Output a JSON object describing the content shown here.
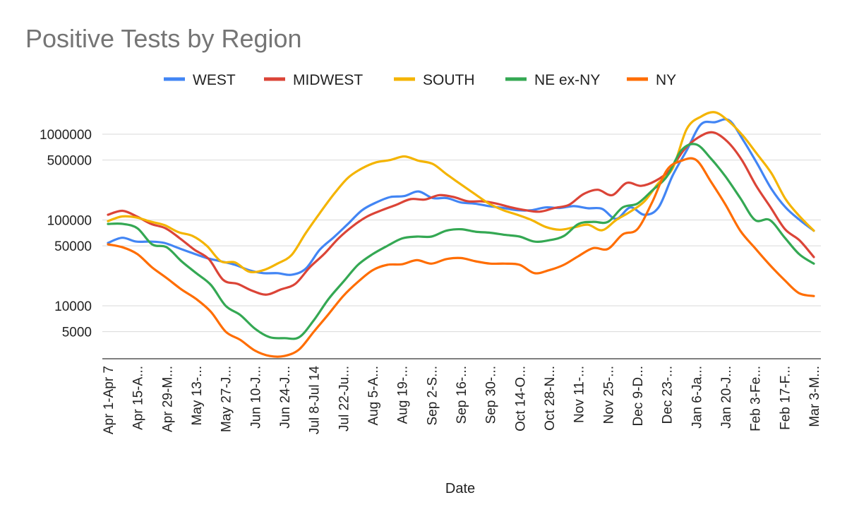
{
  "chart_data": {
    "type": "line",
    "title": "Positive Tests by Region",
    "xlabel": "Date",
    "ylabel": "",
    "yscale": "log",
    "ylim": [
      2500,
      2000000
    ],
    "yticks": [
      5000,
      10000,
      50000,
      100000,
      500000,
      1000000
    ],
    "yticklabels": [
      "5000",
      "10000",
      "50000",
      "100000",
      "500000",
      "1000000"
    ],
    "grid": true,
    "legend_position": "top",
    "xticklabels": [
      "Apr 1-Apr 7",
      "Apr 15-A...",
      "Apr 29-M...",
      "May 13-...",
      "May 27-J...",
      "Jun 10-J...",
      "Jun 24-J...",
      "Jul 8-Jul 14",
      "Jul 22-Ju...",
      "Aug 5-A...",
      "Aug 19-...",
      "Sep 2-S...",
      "Sep 16-...",
      "Sep 30-...",
      "Oct 14-O...",
      "Oct 28-N...",
      "Nov 11-...",
      "Nov 25-...",
      "Dec 9-D...",
      "Dec 23-...",
      "Jan 6-Ja...",
      "Jan 20-J...",
      "Feb 3-Fe...",
      "Feb 17-F...",
      "Mar 3-M..."
    ],
    "series": [
      {
        "name": "WEST",
        "color": "#4285f4",
        "values": [
          54000,
          62000,
          56000,
          56000,
          54000,
          47000,
          41000,
          36000,
          33000,
          30000,
          26000,
          24000,
          24000,
          23000,
          27000,
          45000,
          63000,
          90000,
          130000,
          160000,
          185000,
          190000,
          215000,
          180000,
          180000,
          160000,
          155000,
          145000,
          138000,
          130000,
          130000,
          140000,
          138000,
          145000,
          137000,
          135000,
          103000,
          140000,
          115000,
          140000,
          330000,
          650000,
          1300000,
          1380000,
          1450000,
          850000,
          450000,
          230000,
          140000,
          100000,
          75000
        ]
      },
      {
        "name": "MIDWEST",
        "color": "#db4437",
        "values": [
          115000,
          128000,
          110000,
          90000,
          80000,
          61000,
          45000,
          35000,
          20000,
          18000,
          15000,
          13500,
          15500,
          18000,
          28000,
          40000,
          61000,
          85000,
          110000,
          130000,
          150000,
          175000,
          173000,
          195000,
          185000,
          165000,
          165000,
          155000,
          140000,
          130000,
          125000,
          138000,
          150000,
          200000,
          225000,
          195000,
          270000,
          250000,
          285000,
          380000,
          660000,
          920000,
          1050000,
          820000,
          500000,
          250000,
          140000,
          78000,
          58000,
          37000
        ]
      },
      {
        "name": "SOUTH",
        "color": "#f4b400",
        "values": [
          97000,
          110000,
          107000,
          96000,
          87000,
          72000,
          65000,
          50000,
          33000,
          32000,
          25000,
          26000,
          31000,
          39000,
          70000,
          120000,
          200000,
          310000,
          400000,
          470000,
          500000,
          550000,
          490000,
          450000,
          340000,
          260000,
          200000,
          155000,
          130000,
          115000,
          100000,
          83000,
          77000,
          82000,
          88000,
          76000,
          100000,
          125000,
          165000,
          270000,
          400000,
          1150000,
          1600000,
          1800000,
          1400000,
          950000,
          580000,
          350000,
          175000,
          110000,
          75000
        ]
      },
      {
        "name": "NE ex-NY",
        "color": "#34a853",
        "values": [
          90000,
          90000,
          80000,
          52000,
          48000,
          33000,
          24000,
          17500,
          10000,
          7800,
          5400,
          4300,
          4200,
          4300,
          6800,
          12000,
          19000,
          30000,
          40000,
          50000,
          61000,
          64000,
          64000,
          75000,
          78000,
          73000,
          71000,
          67000,
          64000,
          56000,
          58000,
          65000,
          90000,
          95000,
          95000,
          140000,
          155000,
          220000,
          320000,
          650000,
          760000,
          520000,
          320000,
          180000,
          100000,
          100000,
          63000,
          40000,
          31000
        ]
      },
      {
        "name": "NY",
        "color": "#ff6d01",
        "values": [
          52000,
          48000,
          40000,
          28000,
          21000,
          15500,
          12000,
          8500,
          5000,
          4000,
          3000,
          2600,
          2600,
          3100,
          5000,
          8000,
          13000,
          19000,
          26000,
          30000,
          30500,
          34000,
          31000,
          35000,
          36000,
          33000,
          31000,
          31000,
          30000,
          24000,
          26000,
          30000,
          38000,
          47000,
          46000,
          68000,
          78000,
          160000,
          380000,
          490000,
          500000,
          280000,
          150000,
          75000,
          47000,
          30000,
          20000,
          14000,
          13000
        ]
      }
    ]
  }
}
